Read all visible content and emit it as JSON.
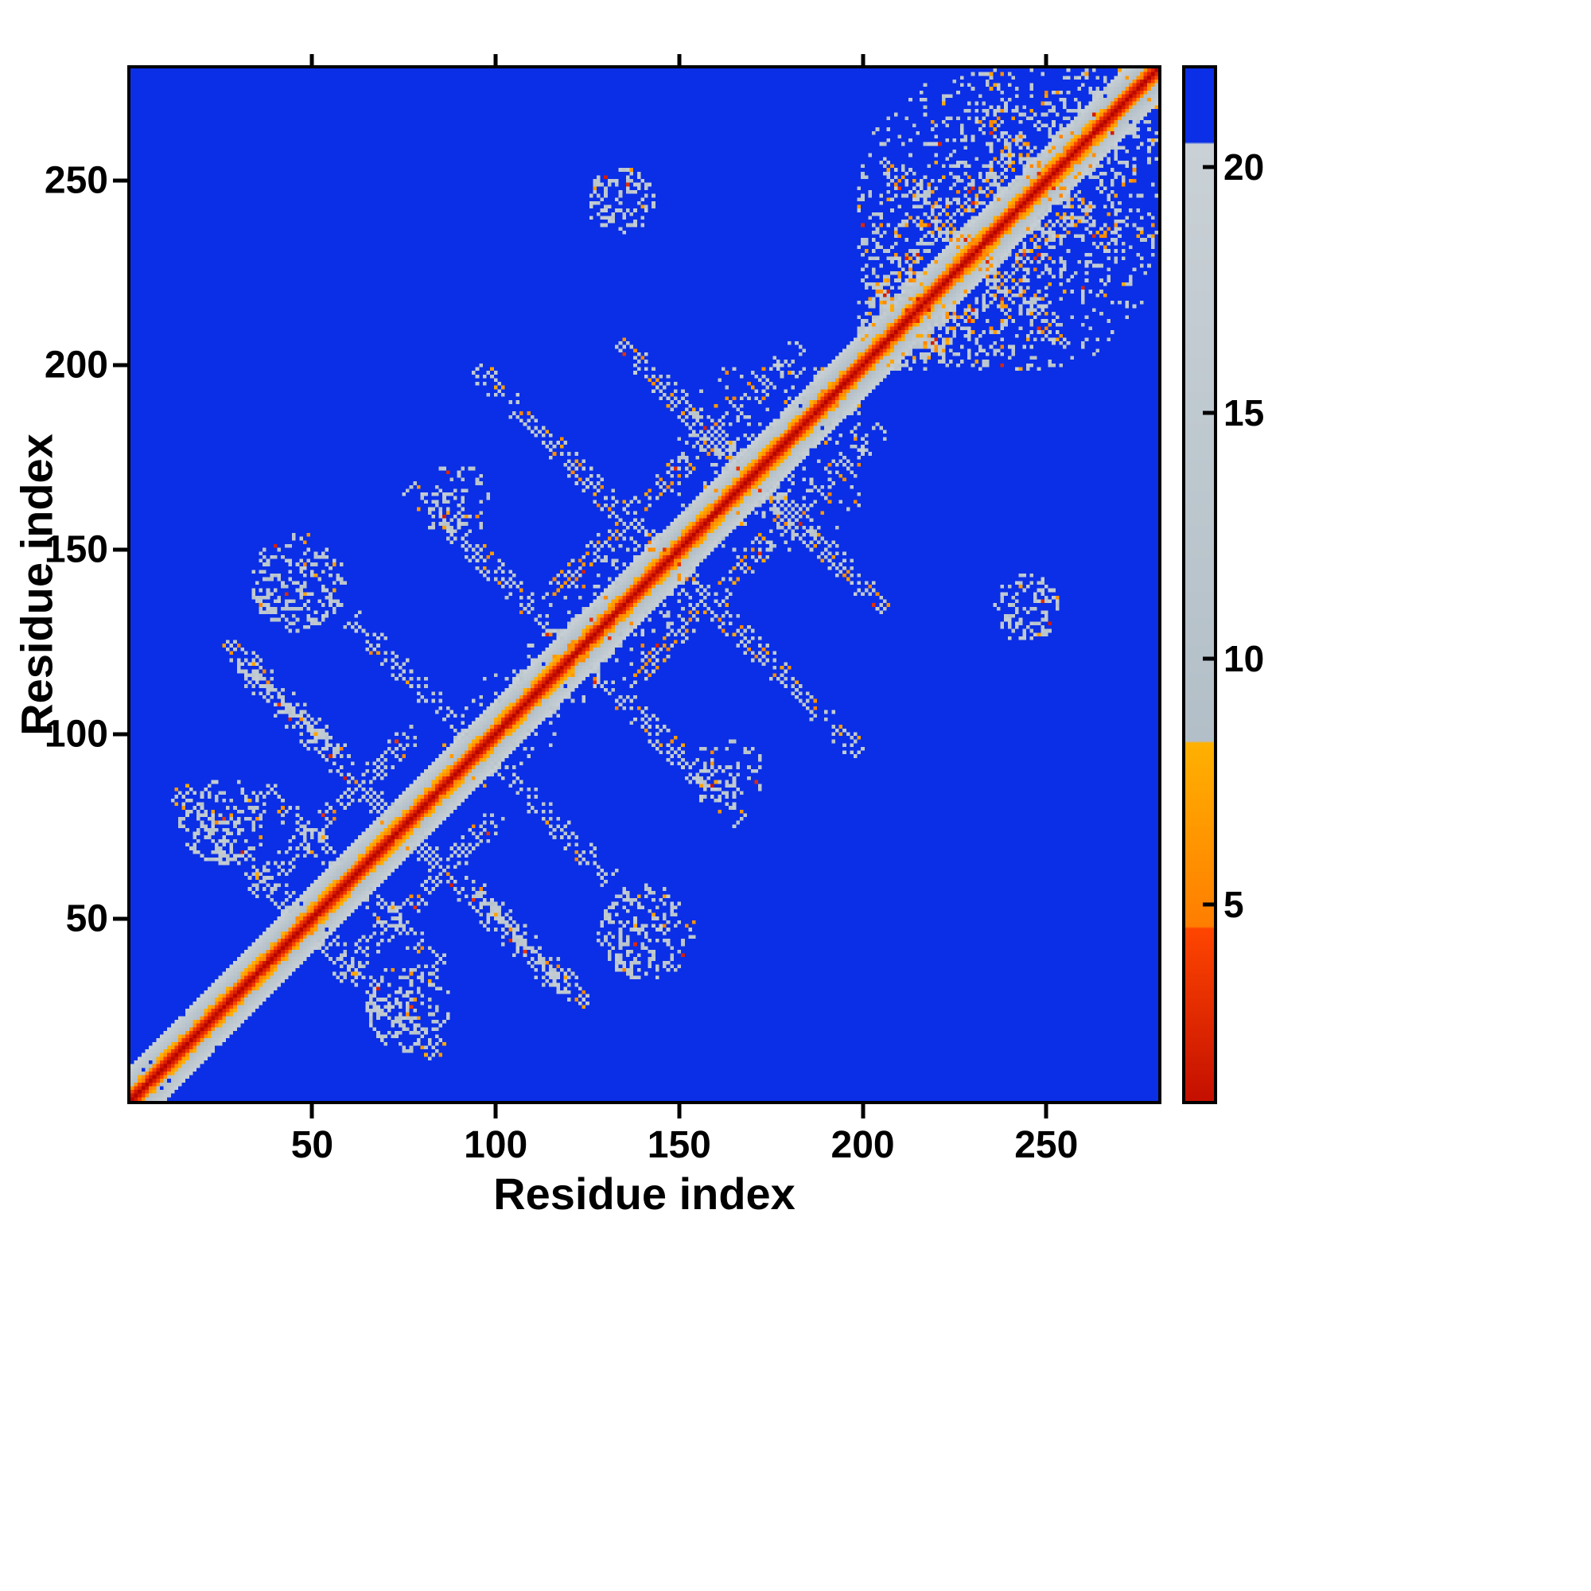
{
  "figure": {
    "xlabel": "Residue index",
    "ylabel": "Residue index"
  },
  "chart_data": {
    "type": "heatmap",
    "title": "",
    "xlabel": "Residue index",
    "ylabel": "Residue index",
    "x_range": [
      1,
      280
    ],
    "y_range": [
      1,
      280
    ],
    "x_ticks": [
      50,
      100,
      150,
      200,
      250
    ],
    "y_ticks": [
      50,
      100,
      150,
      200,
      250
    ],
    "grid": false,
    "n_residues": 280,
    "background_value_color": "#0b2fe6",
    "colorbar": {
      "min": 1,
      "max": 22,
      "ticks": [
        5,
        10,
        15,
        20
      ],
      "position": "right"
    },
    "colormap_bands": [
      {
        "upto": 4.5,
        "from": "#b40000",
        "to": "#ff4600"
      },
      {
        "upto": 8.3,
        "from": "#ff7d00",
        "to": "#ffb100"
      },
      {
        "upto": 20.5,
        "from": "#b3bfc8",
        "to": "#c9d1d6"
      },
      {
        "upto": 99,
        "from": "#0b2fe6",
        "to": "#0b2fe6"
      }
    ],
    "seed": 11,
    "diagonal_band": {
      "half_width": 11,
      "value_per_offset": 2.15
    },
    "features": [
      {
        "kind": "anti",
        "cx": 32,
        "cy": 64,
        "len": 20,
        "orange": 0.05
      },
      {
        "kind": "anti",
        "cx": 50,
        "cy": 70,
        "len": 14,
        "orange": 0.05
      },
      {
        "kind": "anti",
        "cx": 55,
        "cy": 92,
        "len": 26,
        "orange": 0.07
      },
      {
        "kind": "par",
        "cx": 55,
        "cy": 78,
        "len": 22,
        "orange": 0.05
      },
      {
        "kind": "blob",
        "cx": 25,
        "cy": 75,
        "r": 12,
        "density": 0.18,
        "orange": 0.05
      },
      {
        "kind": "anti",
        "cx": 42,
        "cy": 108,
        "len": 16,
        "orange": 0.04
      },
      {
        "kind": "anti",
        "cx": 78,
        "cy": 112,
        "len": 18,
        "orange": 0.06
      },
      {
        "kind": "blob",
        "cx": 45,
        "cy": 140,
        "r": 13,
        "density": 0.2,
        "orange": 0.05
      },
      {
        "kind": "blob",
        "cx": 88,
        "cy": 162,
        "r": 10,
        "density": 0.12,
        "orange": 0.04
      },
      {
        "kind": "anti",
        "cx": 100,
        "cy": 142,
        "len": 24,
        "orange": 0.08
      },
      {
        "kind": "cluster",
        "x0": 85,
        "x1": 155,
        "y0": 85,
        "y1": 155,
        "max_off": 18,
        "density": 0.22,
        "orange": 0.06
      },
      {
        "kind": "anti",
        "cx": 120,
        "cy": 172,
        "len": 26,
        "orange": 0.18
      },
      {
        "kind": "par",
        "cx": 133,
        "cy": 155,
        "len": 20,
        "orange": 0.28
      },
      {
        "kind": "anti",
        "cx": 148,
        "cy": 190,
        "len": 16,
        "orange": 0.1
      },
      {
        "kind": "anti",
        "cx": 160,
        "cy": 178,
        "len": 18,
        "orange": 0.15
      },
      {
        "kind": "par",
        "cx": 168,
        "cy": 190,
        "len": 14,
        "orange": 0.15
      },
      {
        "kind": "cluster",
        "x0": 148,
        "x1": 200,
        "y0": 148,
        "y1": 200,
        "max_off": 40,
        "density": 0.13,
        "orange": 0.08
      },
      {
        "kind": "blob",
        "cx": 133,
        "cy": 244,
        "r": 9,
        "density": 0.22,
        "orange": 0.04
      },
      {
        "kind": "cluster",
        "x0": 198,
        "x1": 279,
        "y0": 198,
        "y1": 279,
        "max_off": 60,
        "density": 0.3,
        "orange": 0.1
      },
      {
        "kind": "anti",
        "cx": 220,
        "cy": 240,
        "len": 15,
        "orange": 0.3
      },
      {
        "kind": "anti",
        "cx": 240,
        "cy": 258,
        "len": 12,
        "orange": 0.2
      },
      {
        "kind": "par",
        "cx": 228,
        "cy": 244,
        "len": 16,
        "orange": 0.25
      },
      {
        "kind": "blob",
        "cx": 210,
        "cy": 216,
        "r": 9,
        "density": 0.35,
        "orange": 0.15
      }
    ]
  }
}
